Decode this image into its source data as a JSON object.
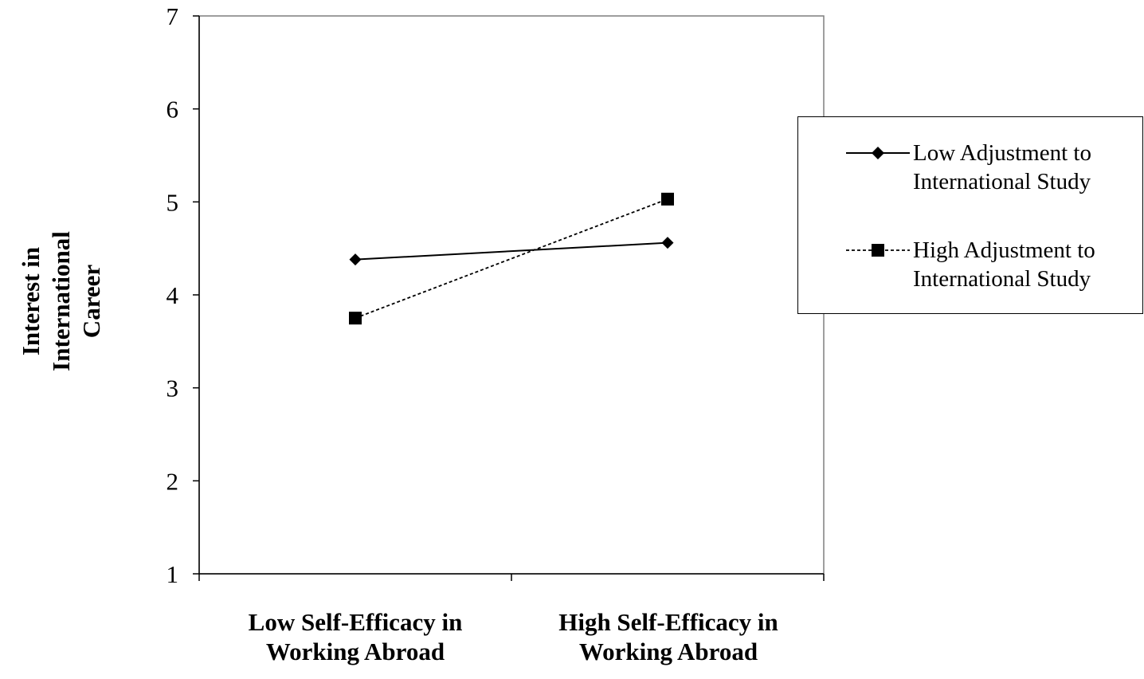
{
  "chart_data": {
    "type": "line",
    "categories": [
      [
        "Low Self-Efficacy in",
        "Working Abroad"
      ],
      [
        "High Self-Efficacy in",
        "Working Abroad"
      ]
    ],
    "ylabel": [
      "Interest in",
      "International",
      "Career"
    ],
    "ylim": [
      1,
      7
    ],
    "yticks": [
      "1",
      "2",
      "3",
      "4",
      "5",
      "6",
      "7"
    ],
    "grid": false,
    "legend_position": "right",
    "series": [
      {
        "name": [
          "Low Adjustment to",
          "International Study"
        ],
        "values": [
          4.38,
          4.56
        ],
        "marker": "diamond",
        "line_style": "solid",
        "color": "#000000"
      },
      {
        "name": [
          "High Adjustment to",
          "International Study"
        ],
        "values": [
          3.75,
          5.03
        ],
        "marker": "square",
        "line_style": "dashed",
        "color": "#000000"
      }
    ]
  }
}
